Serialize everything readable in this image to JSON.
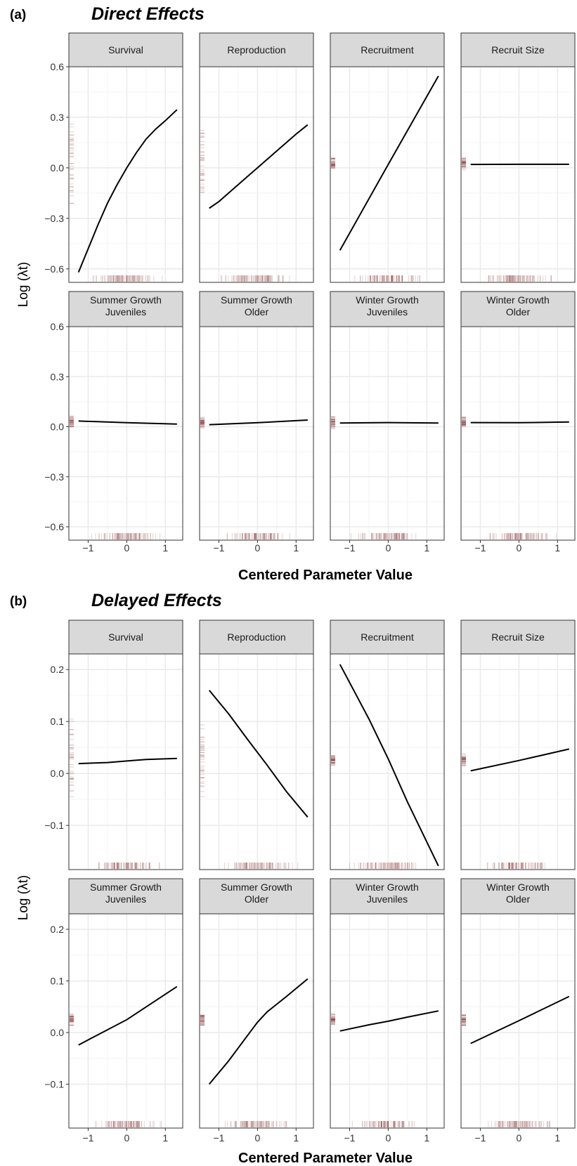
{
  "chart_data": [
    {
      "type": "line",
      "panel_label": "(a)",
      "title": "Direct Effects",
      "xlabel": "Centered Parameter Value",
      "ylabel": "Log (λt)",
      "ylim": [
        -0.68,
        0.6
      ],
      "yticks": [
        "0.6",
        "0.3",
        "0.0",
        "−0.3",
        "−0.6"
      ],
      "ytick_values": [
        0.6,
        0.3,
        0.0,
        -0.3,
        -0.6
      ],
      "xlim": [
        -1.5,
        1.45
      ],
      "xticks": [
        "−1",
        "0",
        "1"
      ],
      "xtick_values": [
        -1,
        0,
        1
      ],
      "grid": true,
      "facets": [
        {
          "strip": [
            "Survival"
          ],
          "x": [
            -1.25,
            -1.0,
            -0.75,
            -0.5,
            -0.25,
            0.0,
            0.25,
            0.5,
            0.75,
            1.0,
            1.3
          ],
          "y": [
            -0.62,
            -0.48,
            -0.34,
            -0.21,
            -0.1,
            0.0,
            0.09,
            0.17,
            0.23,
            0.28,
            0.345
          ]
        },
        {
          "strip": [
            "Reproduction"
          ],
          "x": [
            -1.25,
            -1.0,
            -0.75,
            -0.5,
            -0.25,
            0.0,
            0.25,
            0.5,
            0.75,
            1.0,
            1.3
          ],
          "y": [
            -0.24,
            -0.2,
            -0.15,
            -0.1,
            -0.05,
            0.0,
            0.05,
            0.1,
            0.15,
            0.2,
            0.255
          ]
        },
        {
          "strip": [
            "Recruitment"
          ],
          "x": [
            -1.25,
            0.0,
            1.3
          ],
          "y": [
            -0.49,
            0.02,
            0.545
          ]
        },
        {
          "strip": [
            "Recruit Size"
          ],
          "x": [
            -1.25,
            0.0,
            1.3
          ],
          "y": [
            0.02,
            0.021,
            0.021
          ]
        },
        {
          "strip": [
            "Summer Growth",
            "Juveniles"
          ],
          "x": [
            -1.25,
            0.0,
            1.3
          ],
          "y": [
            0.034,
            0.024,
            0.016
          ]
        },
        {
          "strip": [
            "Summer Growth",
            "Older"
          ],
          "x": [
            -1.25,
            0.0,
            1.3
          ],
          "y": [
            0.012,
            0.024,
            0.04
          ]
        },
        {
          "strip": [
            "Winter Growth",
            "Juveniles"
          ],
          "x": [
            -1.25,
            0.0,
            1.3
          ],
          "y": [
            0.022,
            0.025,
            0.022
          ]
        },
        {
          "strip": [
            "Winter Growth",
            "Older"
          ],
          "x": [
            -1.25,
            0.0,
            1.3
          ],
          "y": [
            0.025,
            0.024,
            0.028
          ]
        }
      ]
    },
    {
      "type": "line",
      "panel_label": "(b)",
      "title": "Delayed Effects",
      "xlabel": "Centered Parameter Value",
      "ylabel": "Log (λt)",
      "ylim": [
        -0.185,
        0.23
      ],
      "yticks": [
        "0.2",
        "0.1",
        "0.0",
        "−0.1"
      ],
      "ytick_values": [
        0.2,
        0.1,
        0.0,
        -0.1
      ],
      "xlim": [
        -1.5,
        1.45
      ],
      "xticks": [
        "−1",
        "0",
        "1"
      ],
      "xtick_values": [
        -1,
        0,
        1
      ],
      "grid": true,
      "facets": [
        {
          "strip": [
            "Survival"
          ],
          "x": [
            -1.25,
            -0.5,
            0.0,
            0.5,
            1.3
          ],
          "y": [
            0.019,
            0.021,
            0.024,
            0.027,
            0.029
          ]
        },
        {
          "strip": [
            "Reproduction"
          ],
          "x": [
            -1.25,
            -0.75,
            -0.25,
            0.25,
            0.75,
            1.3
          ],
          "y": [
            0.16,
            0.115,
            0.065,
            0.016,
            -0.035,
            -0.084
          ]
        },
        {
          "strip": [
            "Recruitment"
          ],
          "x": [
            -1.25,
            -0.5,
            0.0,
            0.5,
            1.3
          ],
          "y": [
            0.21,
            0.105,
            0.028,
            -0.055,
            -0.178
          ]
        },
        {
          "strip": [
            "Recruit Size"
          ],
          "x": [
            -1.25,
            0.0,
            1.3
          ],
          "y": [
            0.005,
            0.025,
            0.047
          ]
        },
        {
          "strip": [
            "Summer Growth",
            "Juveniles"
          ],
          "x": [
            -1.25,
            0.0,
            1.3
          ],
          "y": [
            -0.024,
            0.025,
            0.089
          ]
        },
        {
          "strip": [
            "Summer Growth",
            "Older"
          ],
          "x": [
            -1.25,
            -0.75,
            -0.25,
            0.0,
            0.25,
            0.75,
            1.3
          ],
          "y": [
            -0.1,
            -0.055,
            -0.005,
            0.02,
            0.04,
            0.07,
            0.104
          ]
        },
        {
          "strip": [
            "Winter Growth",
            "Juveniles"
          ],
          "x": [
            -1.25,
            -0.5,
            0.0,
            0.5,
            1.3
          ],
          "y": [
            0.003,
            0.015,
            0.022,
            0.03,
            0.042
          ]
        },
        {
          "strip": [
            "Winter Growth",
            "Older"
          ],
          "x": [
            -1.25,
            0.0,
            1.3
          ],
          "y": [
            -0.021,
            0.023,
            0.07
          ]
        }
      ]
    }
  ],
  "colors": {
    "strip_fill": "#d9d9d9",
    "grid": "#ebebeb",
    "line": "#000000",
    "rug": "#6b0000",
    "panel_border": "#333333"
  }
}
